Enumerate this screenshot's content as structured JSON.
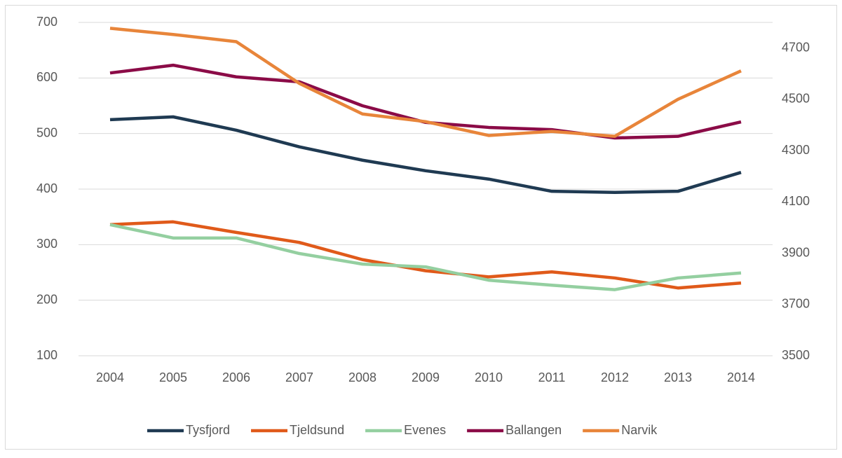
{
  "chart_data": {
    "type": "line",
    "categories": [
      "2004",
      "2005",
      "2006",
      "2007",
      "2008",
      "2009",
      "2010",
      "2011",
      "2012",
      "2013",
      "2014"
    ],
    "series": [
      {
        "name": "Tysfjord",
        "color": "#1f3a52",
        "values": [
          525,
          530,
          506,
          476,
          452,
          433,
          418,
          396,
          394,
          396,
          430
        ]
      },
      {
        "name": "Tjeldsund",
        "color": "#e05a1a",
        "values": [
          336,
          341,
          322,
          304,
          273,
          253,
          242,
          251,
          240,
          222,
          231
        ]
      },
      {
        "name": "Evenes",
        "color": "#94cfa0",
        "values": [
          336,
          312,
          312,
          284,
          265,
          260,
          236,
          227,
          219,
          240,
          249
        ]
      },
      {
        "name": "Ballangen",
        "color": "#8b0b47",
        "values": [
          609,
          623,
          602,
          593,
          550,
          520,
          511,
          507,
          492,
          495,
          521
        ]
      },
      {
        "name": "Narvik",
        "color": "#e8853a",
        "axis": "y2",
        "values": [
          4777,
          4753,
          4725,
          4562,
          4443,
          4413,
          4359,
          4375,
          4356,
          4500,
          4611
        ]
      }
    ],
    "ylim": [
      100,
      700
    ],
    "yticks": [
      100,
      200,
      300,
      400,
      500,
      600,
      700
    ],
    "y2lim": [
      3500,
      4800
    ],
    "y2ticks": [
      3500,
      3700,
      3900,
      4100,
      4300,
      4500,
      4700
    ],
    "grid": true,
    "legend": "bottom"
  }
}
